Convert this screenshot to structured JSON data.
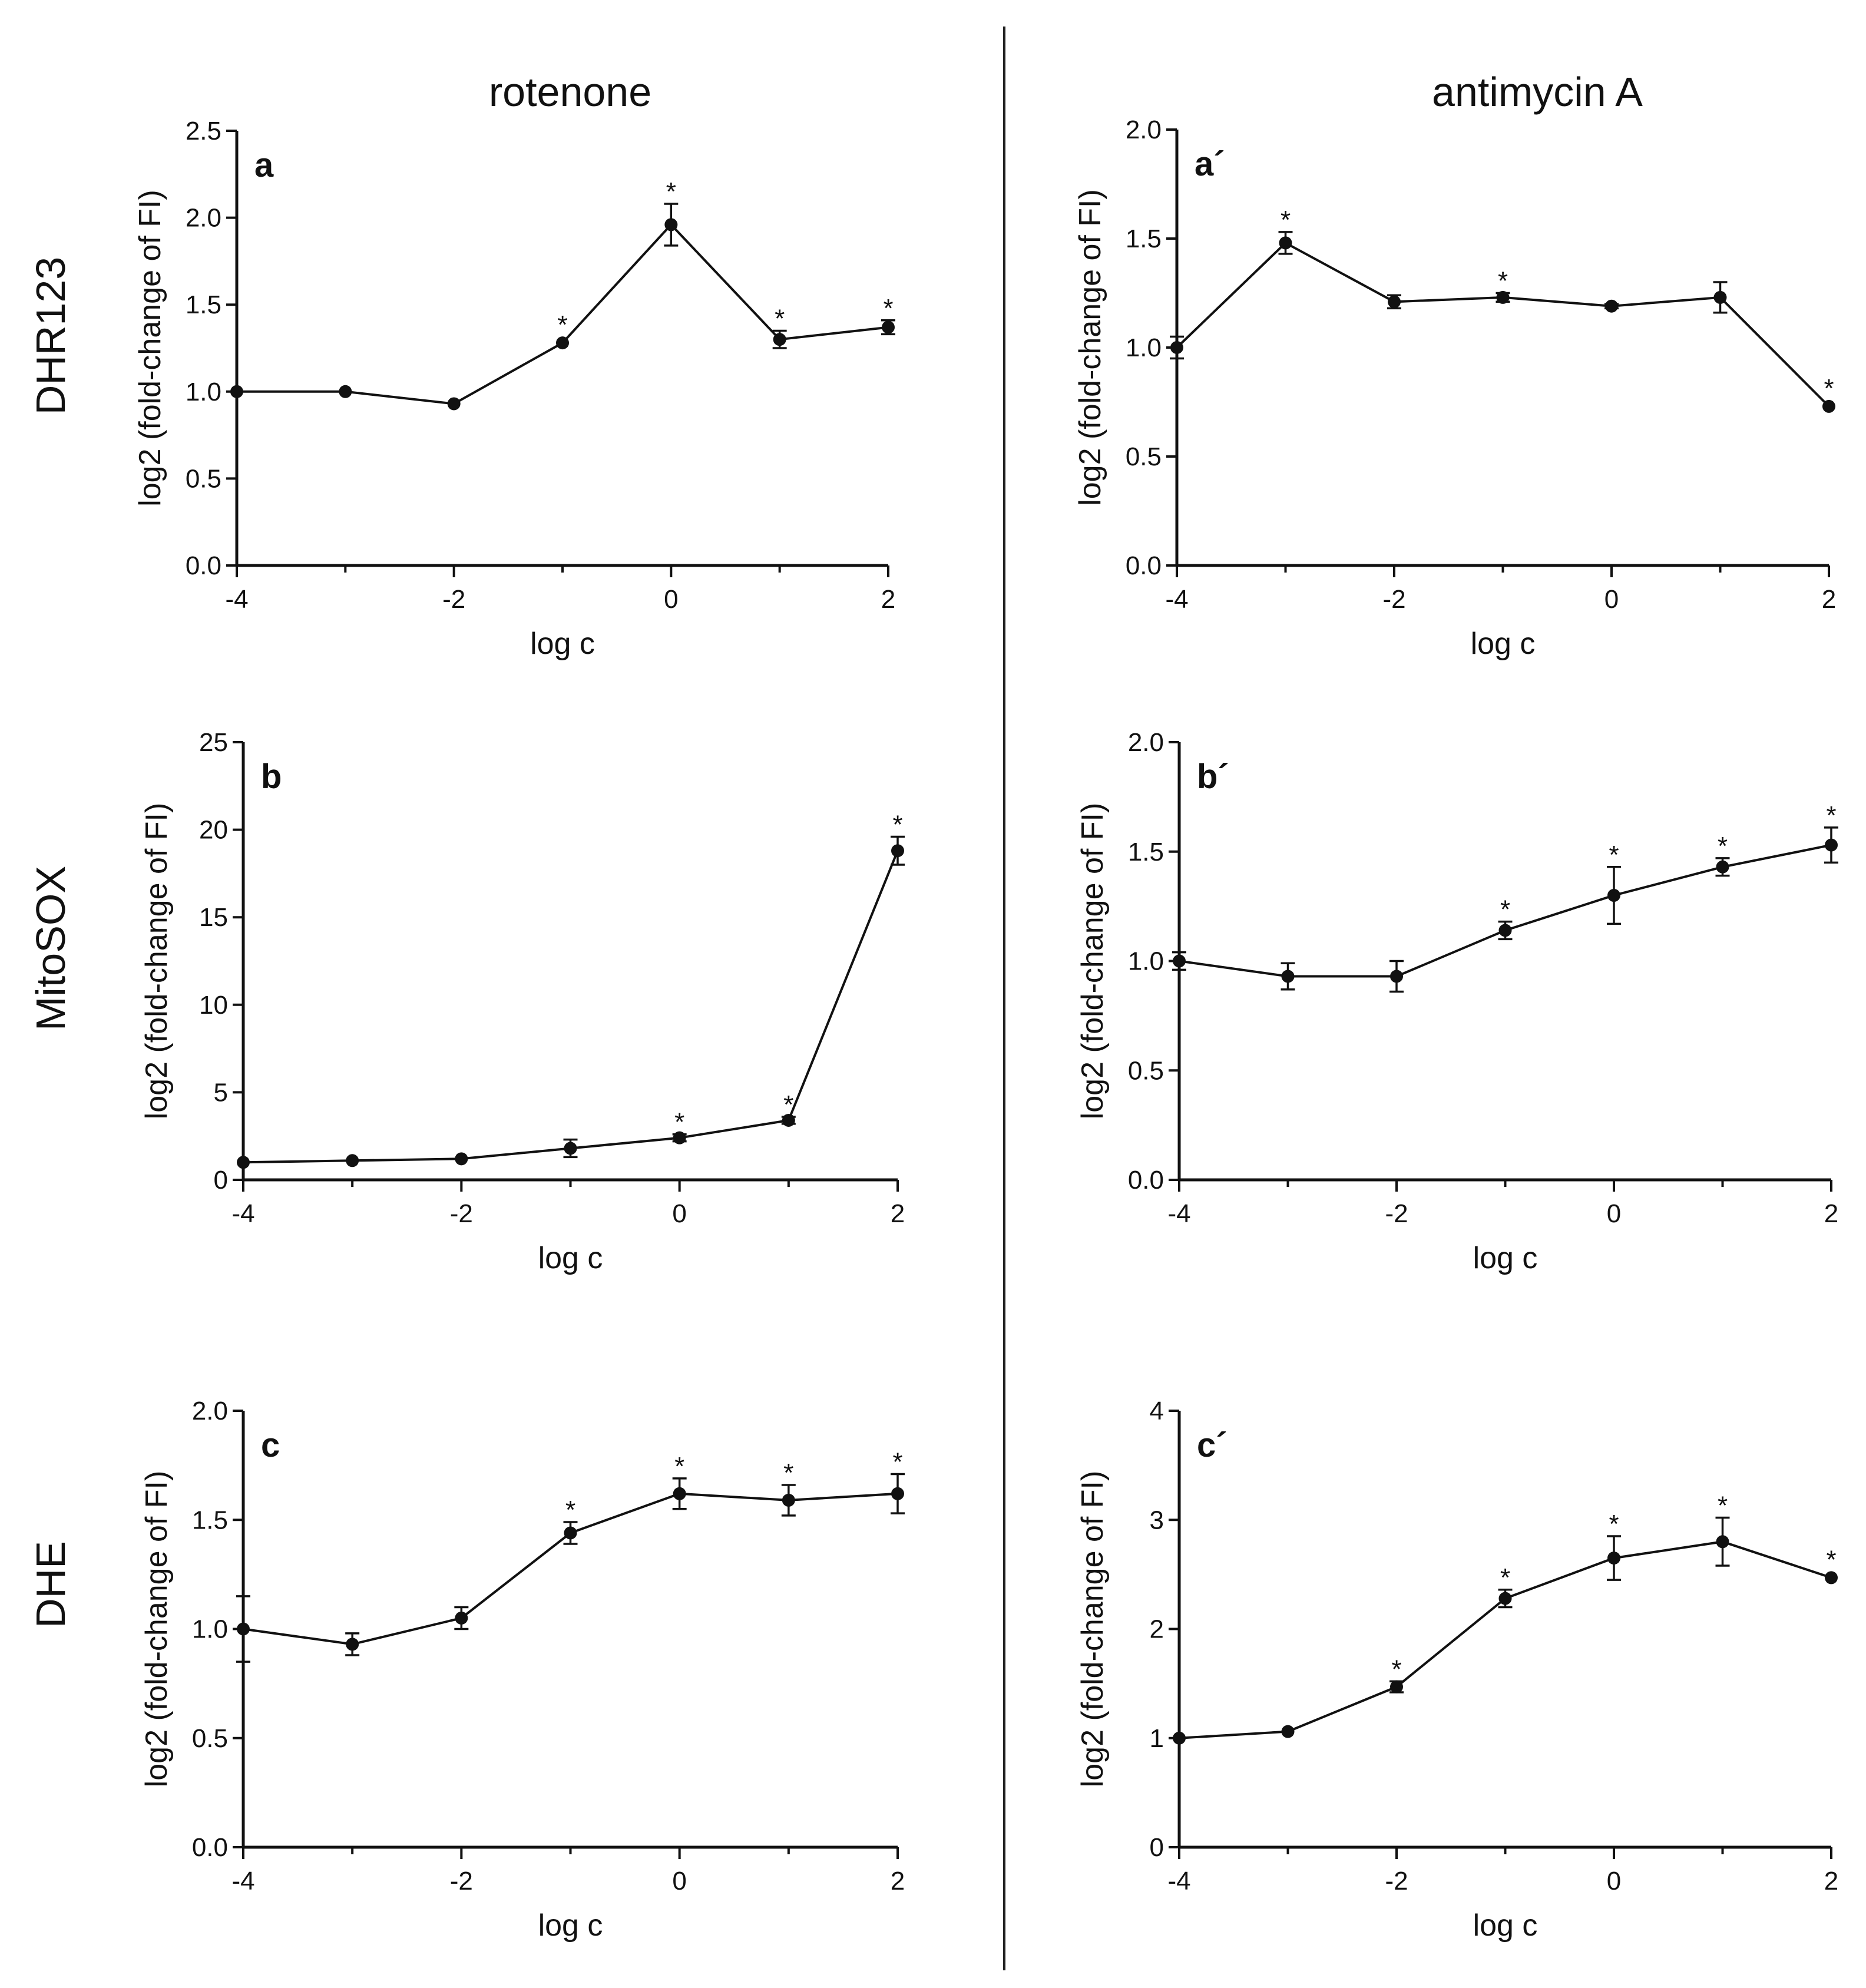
{
  "figure": {
    "columns": [
      "rotenone",
      "antimycin A"
    ],
    "rows": [
      "DHR123",
      "MitoSOX",
      "DHE"
    ]
  },
  "chart_data": [
    {
      "type": "line",
      "panel": "a",
      "xlabel": "log c",
      "ylabel": "log2 (fold-change of FI)",
      "xlim": [
        -4,
        2
      ],
      "xticks": [
        -4,
        -2,
        0,
        2
      ],
      "xtick_labels": [
        "-4",
        "-2",
        "0",
        "2"
      ],
      "ylim": [
        0,
        2.5
      ],
      "yticks": [
        0,
        0.5,
        1,
        1.5,
        2,
        2.5
      ],
      "ytick_labels": [
        "0.0",
        "0.5",
        "1.0",
        "1.5",
        "2.0",
        "2.5"
      ],
      "x": [
        -4,
        -3,
        -2,
        -1,
        0,
        1,
        2
      ],
      "y": [
        1.0,
        1.0,
        0.93,
        1.28,
        1.96,
        1.3,
        1.37
      ],
      "err": [
        0.0,
        0.0,
        0.0,
        0.0,
        0.12,
        0.05,
        0.04
      ],
      "significant": [
        false,
        false,
        false,
        true,
        true,
        true,
        true
      ],
      "marker": "*"
    },
    {
      "type": "line",
      "panel": "a´",
      "xlabel": "log c",
      "ylabel": "log2 (fold-change of FI)",
      "xlim": [
        -4,
        2
      ],
      "xticks": [
        -4,
        -2,
        0,
        2
      ],
      "xtick_labels": [
        "-4",
        "-2",
        "0",
        "2"
      ],
      "ylim": [
        0,
        2.0
      ],
      "yticks": [
        0,
        0.5,
        1,
        1.5,
        2
      ],
      "ytick_labels": [
        "0.0",
        "0.5",
        "1.0",
        "1.5",
        "2.0"
      ],
      "x": [
        -4,
        -3,
        -2,
        -1,
        0,
        1,
        2
      ],
      "y": [
        1.0,
        1.48,
        1.21,
        1.23,
        1.19,
        1.23,
        0.73
      ],
      "err": [
        0.05,
        0.05,
        0.03,
        0.02,
        0.01,
        0.07,
        0.0
      ],
      "significant": [
        false,
        true,
        false,
        true,
        false,
        false,
        true
      ],
      "marker": "*"
    },
    {
      "type": "line",
      "panel": "b",
      "xlabel": "log c",
      "ylabel": "log2 (fold-change of FI)",
      "xlim": [
        -4,
        2
      ],
      "xticks": [
        -4,
        -2,
        0,
        2
      ],
      "xtick_labels": [
        "-4",
        "-2",
        "0",
        "2"
      ],
      "ylim": [
        0,
        25
      ],
      "yticks": [
        0,
        5,
        10,
        15,
        20,
        25
      ],
      "ytick_labels": [
        "0",
        "5",
        "10",
        "15",
        "20",
        "25"
      ],
      "x": [
        -4,
        -3,
        -2,
        -1,
        0,
        1,
        2
      ],
      "y": [
        1.0,
        1.1,
        1.2,
        1.8,
        2.4,
        3.4,
        18.8
      ],
      "err": [
        0.0,
        0.0,
        0.0,
        0.5,
        0.2,
        0.2,
        0.8
      ],
      "significant": [
        false,
        false,
        false,
        false,
        true,
        true,
        true
      ],
      "marker": "*"
    },
    {
      "type": "line",
      "panel": "b´",
      "xlabel": "log c",
      "ylabel": "log2 (fold-change of FI)",
      "xlim": [
        -4,
        2
      ],
      "xticks": [
        -4,
        -2,
        0,
        2
      ],
      "xtick_labels": [
        "-4",
        "-2",
        "0",
        "2"
      ],
      "ylim": [
        0,
        2.0
      ],
      "yticks": [
        0,
        0.5,
        1,
        1.5,
        2
      ],
      "ytick_labels": [
        "0.0",
        "0.5",
        "1.0",
        "1.5",
        "2.0"
      ],
      "x": [
        -4,
        -3,
        -2,
        -1,
        0,
        1,
        2
      ],
      "y": [
        1.0,
        0.93,
        0.93,
        1.14,
        1.3,
        1.43,
        1.53
      ],
      "err": [
        0.04,
        0.06,
        0.07,
        0.04,
        0.13,
        0.04,
        0.08
      ],
      "significant": [
        false,
        false,
        false,
        true,
        true,
        true,
        true
      ],
      "marker": "*"
    },
    {
      "type": "line",
      "panel": "c",
      "xlabel": "log c",
      "ylabel": "log2 (fold-change of FI)",
      "xlim": [
        -4,
        2
      ],
      "xticks": [
        -4,
        -2,
        0,
        2
      ],
      "xtick_labels": [
        "-4",
        "-2",
        "0",
        "2"
      ],
      "ylim": [
        0,
        2.0
      ],
      "yticks": [
        0,
        0.5,
        1,
        1.5,
        2
      ],
      "ytick_labels": [
        "0.0",
        "0.5",
        "1.0",
        "1.5",
        "2.0"
      ],
      "x": [
        -4,
        -3,
        -2,
        -1,
        0,
        1,
        2
      ],
      "y": [
        1.0,
        0.93,
        1.05,
        1.44,
        1.62,
        1.59,
        1.62
      ],
      "err": [
        0.15,
        0.05,
        0.05,
        0.05,
        0.07,
        0.07,
        0.09
      ],
      "significant": [
        false,
        false,
        false,
        true,
        true,
        true,
        true
      ],
      "marker": "*"
    },
    {
      "type": "line",
      "panel": "c´",
      "xlabel": "log c",
      "ylabel": "log2 (fold-change of FI)",
      "xlim": [
        -4,
        2
      ],
      "xticks": [
        -4,
        -2,
        0,
        2
      ],
      "xtick_labels": [
        "-4",
        "-2",
        "0",
        "2"
      ],
      "ylim": [
        0,
        4
      ],
      "yticks": [
        0,
        1,
        2,
        3,
        4
      ],
      "ytick_labels": [
        "0",
        "1",
        "2",
        "3",
        "4"
      ],
      "x": [
        -4,
        -3,
        -2,
        -1,
        0,
        1,
        2
      ],
      "y": [
        1.0,
        1.06,
        1.47,
        2.28,
        2.65,
        2.8,
        2.47
      ],
      "err": [
        0.0,
        0.0,
        0.05,
        0.08,
        0.2,
        0.22,
        0.0
      ],
      "significant": [
        false,
        false,
        true,
        true,
        true,
        true,
        true
      ],
      "marker": "*"
    }
  ]
}
